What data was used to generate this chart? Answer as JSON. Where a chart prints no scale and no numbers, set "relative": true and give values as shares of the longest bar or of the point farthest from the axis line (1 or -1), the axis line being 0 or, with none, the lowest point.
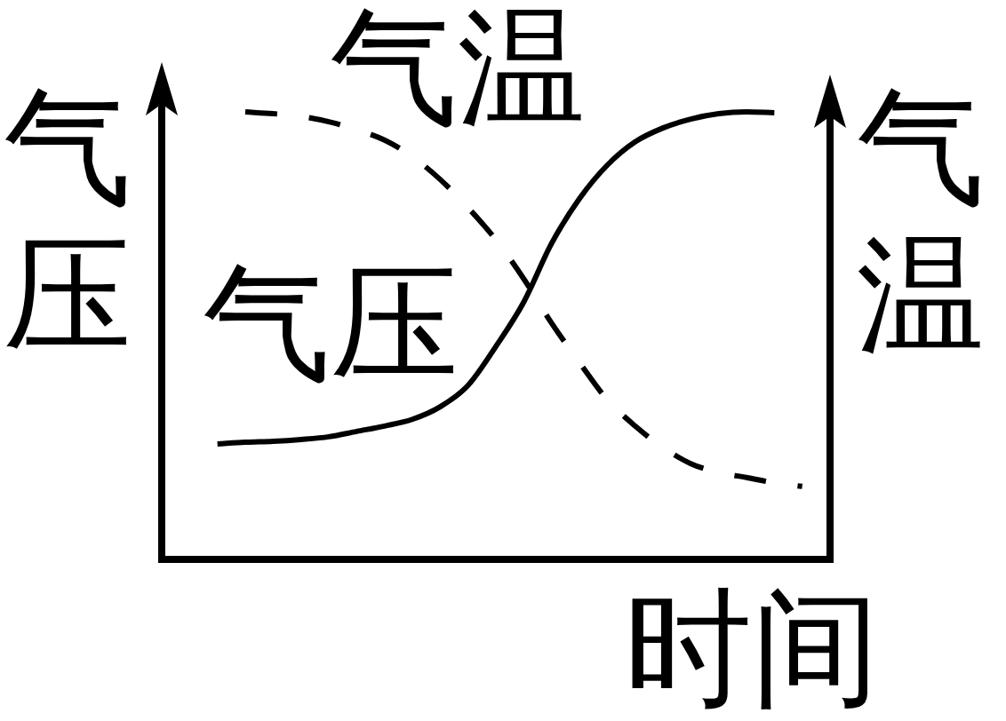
{
  "chart_data": {
    "type": "line",
    "relative": true,
    "xlabel": "时间",
    "ylabel": "气压",
    "y2label": "气温",
    "categories": [
      null,
      null,
      null,
      null,
      null,
      null,
      null,
      null,
      null,
      null,
      null,
      null,
      null,
      null,
      null,
      null,
      null,
      null,
      null,
      null,
      null,
      null,
      null,
      null,
      null
    ],
    "series": [
      {
        "name": "气压",
        "color": "#000000",
        "line_style": "solid",
        "values": [
          null,
          null,
          0.258,
          0.262,
          0.264,
          0.268,
          0.274,
          0.286,
          0.298,
          0.313,
          0.341,
          0.389,
          0.476,
          0.575,
          0.706,
          0.806,
          0.881,
          0.933,
          0.964,
          0.984,
          0.996,
          1.0,
          0.998,
          null,
          null
        ]
      },
      {
        "name": "气温",
        "color": "#000000",
        "line_style": "dashed",
        "values": [
          null,
          null,
          null,
          1.0,
          0.996,
          0.99,
          0.978,
          0.96,
          0.937,
          0.9,
          0.849,
          0.786,
          0.714,
          0.627,
          0.528,
          0.44,
          0.357,
          0.298,
          0.25,
          0.214,
          0.194,
          0.183,
          0.171,
          0.163,
          null
        ]
      }
    ],
    "marker": "none",
    "legend": false
  }
}
